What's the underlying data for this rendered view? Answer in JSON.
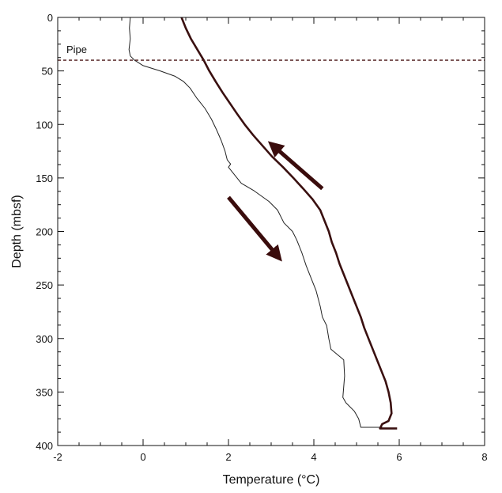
{
  "chart_data": {
    "type": "line",
    "xlabel": "Temperature (°C)",
    "ylabel": "Depth (mbsf)",
    "xlim": [
      -2,
      8
    ],
    "ylim": [
      400,
      0
    ],
    "y_inverted": true,
    "x_ticks": [
      -2,
      0,
      2,
      4,
      6,
      8
    ],
    "x_tick_labels": [
      "-2",
      "0",
      "2",
      "4",
      "6",
      "8"
    ],
    "y_ticks": [
      0,
      50,
      100,
      150,
      200,
      250,
      300,
      350,
      400
    ],
    "y_tick_labels": [
      "0",
      "50",
      "100",
      "150",
      "200",
      "250",
      "300",
      "350",
      "400"
    ],
    "grid": false,
    "colors": {
      "axis": "#111111",
      "line_up": "#3a1010",
      "line_down": "#222222",
      "arrow": "#3a0c0c",
      "pipe": "#4a1616"
    },
    "series": [
      {
        "style": "thin",
        "points": [
          [
            -0.3,
            0
          ],
          [
            -0.32,
            10
          ],
          [
            -0.3,
            20
          ],
          [
            -0.33,
            30
          ],
          [
            -0.3,
            36
          ],
          [
            -0.2,
            40
          ],
          [
            0.0,
            45
          ],
          [
            0.4,
            50
          ],
          [
            0.75,
            55
          ],
          [
            0.95,
            60
          ],
          [
            1.1,
            66
          ],
          [
            1.25,
            75
          ],
          [
            1.45,
            85
          ],
          [
            1.6,
            95
          ],
          [
            1.72,
            105
          ],
          [
            1.83,
            115
          ],
          [
            1.92,
            125
          ],
          [
            1.97,
            133
          ],
          [
            2.05,
            137
          ],
          [
            2.0,
            140
          ],
          [
            2.1,
            145
          ],
          [
            2.3,
            155
          ],
          [
            2.6,
            162
          ],
          [
            2.95,
            172
          ],
          [
            3.15,
            180
          ],
          [
            3.3,
            192
          ],
          [
            3.5,
            200
          ],
          [
            3.6,
            208
          ],
          [
            3.72,
            220
          ],
          [
            3.82,
            232
          ],
          [
            3.95,
            245
          ],
          [
            4.05,
            255
          ],
          [
            4.15,
            270
          ],
          [
            4.2,
            280
          ],
          [
            4.3,
            288
          ],
          [
            4.35,
            300
          ],
          [
            4.4,
            310
          ],
          [
            4.55,
            315
          ],
          [
            4.7,
            320
          ],
          [
            4.72,
            335
          ],
          [
            4.68,
            355
          ],
          [
            4.75,
            360
          ],
          [
            4.95,
            368
          ],
          [
            5.05,
            375
          ],
          [
            5.1,
            383
          ],
          [
            5.6,
            383
          ]
        ]
      },
      {
        "style": "thick",
        "points": [
          [
            0.9,
            0
          ],
          [
            1.0,
            10
          ],
          [
            1.12,
            20
          ],
          [
            1.27,
            30
          ],
          [
            1.42,
            40
          ],
          [
            1.55,
            50
          ],
          [
            1.7,
            60
          ],
          [
            1.86,
            70
          ],
          [
            2.03,
            80
          ],
          [
            2.2,
            90
          ],
          [
            2.38,
            100
          ],
          [
            2.58,
            110
          ],
          [
            2.8,
            120
          ],
          [
            3.02,
            130
          ],
          [
            3.28,
            140
          ],
          [
            3.52,
            150
          ],
          [
            3.75,
            160
          ],
          [
            3.97,
            170
          ],
          [
            4.15,
            180
          ],
          [
            4.25,
            190
          ],
          [
            4.35,
            200
          ],
          [
            4.42,
            210
          ],
          [
            4.52,
            220
          ],
          [
            4.6,
            230
          ],
          [
            4.7,
            240
          ],
          [
            4.8,
            250
          ],
          [
            4.9,
            260
          ],
          [
            5.0,
            270
          ],
          [
            5.1,
            280
          ],
          [
            5.18,
            290
          ],
          [
            5.28,
            300
          ],
          [
            5.38,
            310
          ],
          [
            5.48,
            320
          ],
          [
            5.58,
            330
          ],
          [
            5.68,
            340
          ],
          [
            5.75,
            350
          ],
          [
            5.8,
            360
          ],
          [
            5.82,
            370
          ],
          [
            5.75,
            377
          ],
          [
            5.6,
            380
          ],
          [
            5.55,
            384
          ],
          [
            5.95,
            384
          ]
        ]
      }
    ],
    "reference_lines": [
      {
        "orientation": "horizontal",
        "y": 40,
        "style": "dashed",
        "label": "Pipe"
      }
    ],
    "annotations": [
      {
        "type": "arrow",
        "from": [
          4.2,
          160
        ],
        "to": [
          3.05,
          120
        ]
      },
      {
        "type": "arrow",
        "from": [
          2.0,
          168
        ],
        "to": [
          3.15,
          223
        ]
      }
    ]
  }
}
